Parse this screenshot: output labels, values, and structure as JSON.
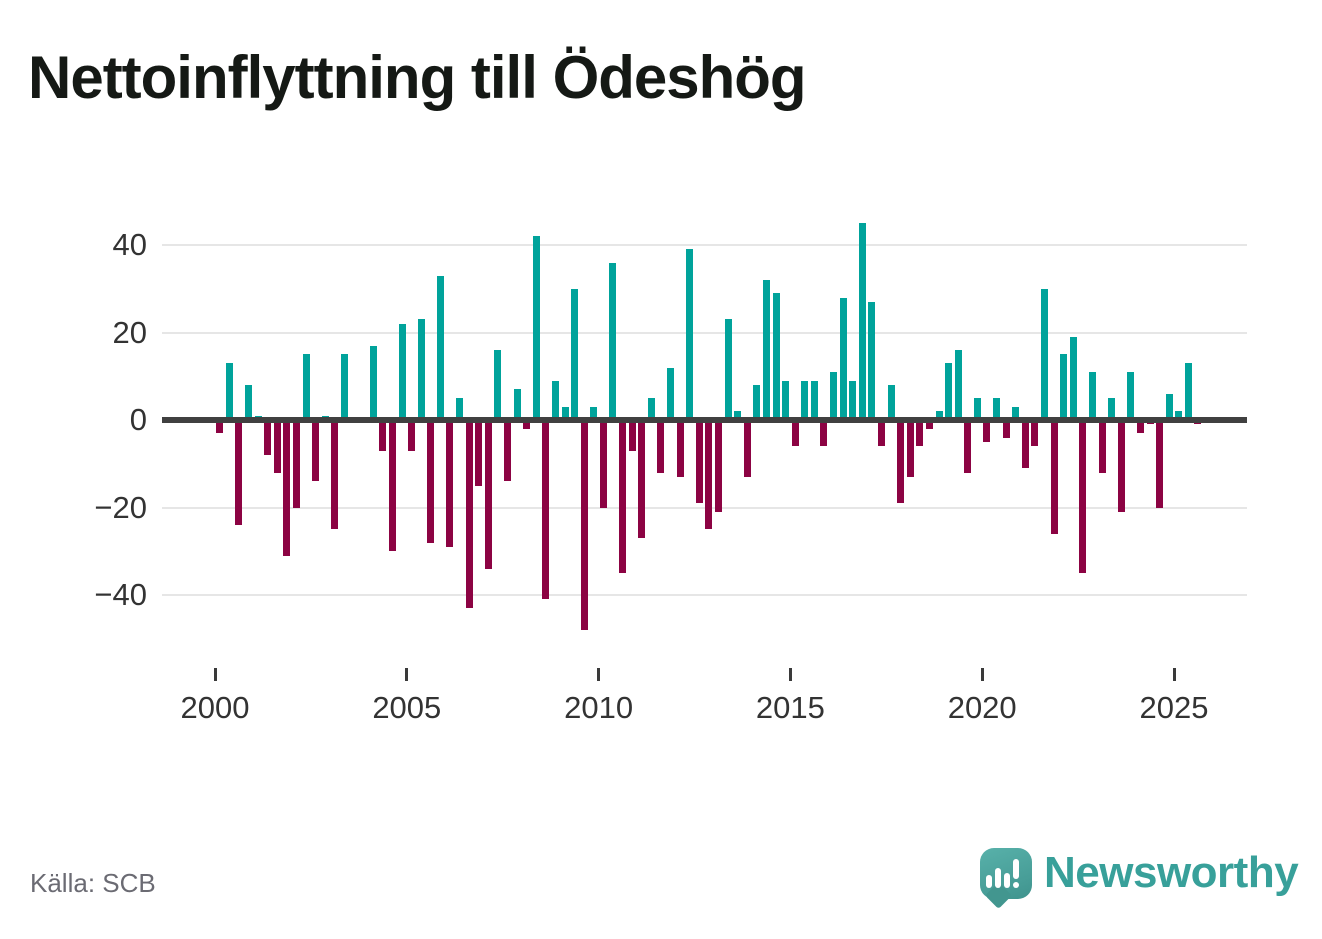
{
  "chart": {
    "title": "Nettoinflyttning till Ödeshög",
    "source": "Källa: SCB",
    "brand": "Newsworthy"
  },
  "chart_data": {
    "type": "bar",
    "title": "Nettoinflyttning till Ödeshög",
    "x_unit": "quarter",
    "x_start": "2000 Q1",
    "x_end": "2025 Q3",
    "xticks": [
      "2000",
      "2005",
      "2010",
      "2015",
      "2020",
      "2025"
    ],
    "yticks": [
      {
        "label": "40",
        "value": 40
      },
      {
        "label": "20",
        "value": 20
      },
      {
        "label": "0",
        "value": 0
      },
      {
        "label": "−20",
        "value": -20
      },
      {
        "label": "−40",
        "value": -40
      }
    ],
    "ylim": [
      -50,
      46
    ],
    "grid": "horizontal",
    "legend": "none",
    "colors": {
      "positive": "#00a39b",
      "negative": "#8c0343",
      "zero_axis": "#404040",
      "gridline": "#e6e6e6"
    },
    "series_by_year": [
      {
        "year": 2000,
        "values": [
          -3,
          13,
          -24,
          8
        ]
      },
      {
        "year": 2001,
        "values": [
          1,
          -8,
          -12,
          -31
        ]
      },
      {
        "year": 2002,
        "values": [
          -20,
          15,
          -14,
          1
        ]
      },
      {
        "year": 2003,
        "values": [
          -25,
          15,
          0,
          0
        ]
      },
      {
        "year": 2004,
        "values": [
          17,
          -7,
          -30,
          22
        ]
      },
      {
        "year": 2005,
        "values": [
          -7,
          23,
          -28,
          33
        ]
      },
      {
        "year": 2006,
        "values": [
          -29,
          5,
          -43,
          -15
        ]
      },
      {
        "year": 2007,
        "values": [
          -34,
          16,
          -14,
          7
        ]
      },
      {
        "year": 2008,
        "values": [
          -2,
          42,
          -41,
          9
        ]
      },
      {
        "year": 2009,
        "values": [
          3,
          30,
          -48,
          3
        ]
      },
      {
        "year": 2010,
        "values": [
          -20,
          36,
          -35,
          -7
        ]
      },
      {
        "year": 2011,
        "values": [
          -27,
          5,
          -12,
          12
        ]
      },
      {
        "year": 2012,
        "values": [
          -13,
          39,
          -19,
          -25
        ]
      },
      {
        "year": 2013,
        "values": [
          -21,
          23,
          2,
          -13
        ]
      },
      {
        "year": 2014,
        "values": [
          8,
          32,
          29,
          9
        ]
      },
      {
        "year": 2015,
        "values": [
          -6,
          9,
          9,
          -6
        ]
      },
      {
        "year": 2016,
        "values": [
          11,
          28,
          9,
          45
        ]
      },
      {
        "year": 2017,
        "values": [
          27,
          -6,
          8,
          -19
        ]
      },
      {
        "year": 2018,
        "values": [
          -13,
          -6,
          -2,
          2
        ]
      },
      {
        "year": 2019,
        "values": [
          13,
          16,
          -12,
          5
        ]
      },
      {
        "year": 2020,
        "values": [
          -5,
          5,
          -4,
          3
        ]
      },
      {
        "year": 2021,
        "values": [
          -11,
          -6,
          30,
          -26
        ]
      },
      {
        "year": 2022,
        "values": [
          15,
          19,
          -35,
          11
        ]
      },
      {
        "year": 2023,
        "values": [
          -12,
          5,
          -21,
          11
        ]
      },
      {
        "year": 2024,
        "values": [
          -3,
          -1,
          -20,
          6
        ]
      },
      {
        "year": 2025,
        "values": [
          2,
          13,
          -1
        ]
      }
    ]
  }
}
